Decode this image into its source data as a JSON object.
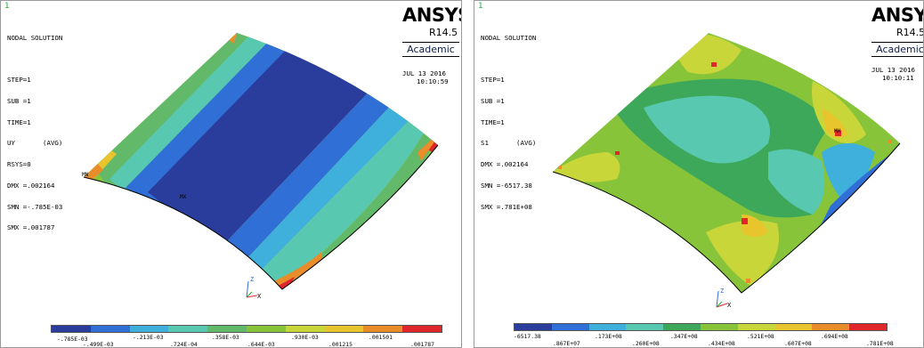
{
  "left_panel": {
    "window_number": "1",
    "info_lines": [
      "NODAL SOLUTION",
      "",
      "STEP=1",
      "SUB =1",
      "TIME=1",
      "UY       (AVG)",
      "RSYS=0",
      "DMX =.002164",
      "SMN =-.785E-03",
      "SMX =.001787"
    ],
    "brand": "ANSYS",
    "release": "R14.5",
    "edition": "Academic",
    "date": "JUL 13 2016",
    "time": "10:10:59",
    "min_marker": "MN",
    "max_marker": "MX",
    "axis_z": "Z",
    "axis_x": "X",
    "legend_colors": [
      "#2a3c9c",
      "#2f6fd6",
      "#3fb0dc",
      "#58c9b0",
      "#63b96a",
      "#88c43a",
      "#c9d63a",
      "#e8c52d",
      "#e88d2a",
      "#e0262b"
    ],
    "legend_top_labels": [
      "-.785E-03",
      "-.213E-03",
      ".358E-03",
      ".930E-03",
      ".001501"
    ],
    "legend_bottom_labels": [
      "-.499E-03",
      ".724E-04",
      ".644E-03",
      ".001215",
      ".001787"
    ]
  },
  "right_panel": {
    "window_number": "1",
    "info_lines": [
      "NODAL SOLUTION",
      "",
      "STEP=1",
      "SUB =1",
      "TIME=1",
      "S1       (AVG)",
      "DMX =.002164",
      "SMN =-6517.38",
      "SMX =.781E+08"
    ],
    "brand": "ANSYS",
    "release": "R14.5",
    "edition": "Academic",
    "date": "JUL 13 2016",
    "time": "10:10:11",
    "max_marker": "MX",
    "axis_z": "Z",
    "axis_x": "X",
    "legend_colors": [
      "#2a3c9c",
      "#2f6fd6",
      "#3fb0dc",
      "#58c9b0",
      "#3ea85a",
      "#88c43a",
      "#c9d63a",
      "#e8c52d",
      "#e88d2a",
      "#e0262b"
    ],
    "legend_top_labels": [
      "-6517.38",
      ".173E+08",
      ".347E+08",
      ".521E+08",
      ".694E+08"
    ],
    "legend_bottom_labels": [
      ".867E+07",
      ".260E+08",
      ".434E+08",
      ".607E+08",
      ".781E+08"
    ]
  }
}
